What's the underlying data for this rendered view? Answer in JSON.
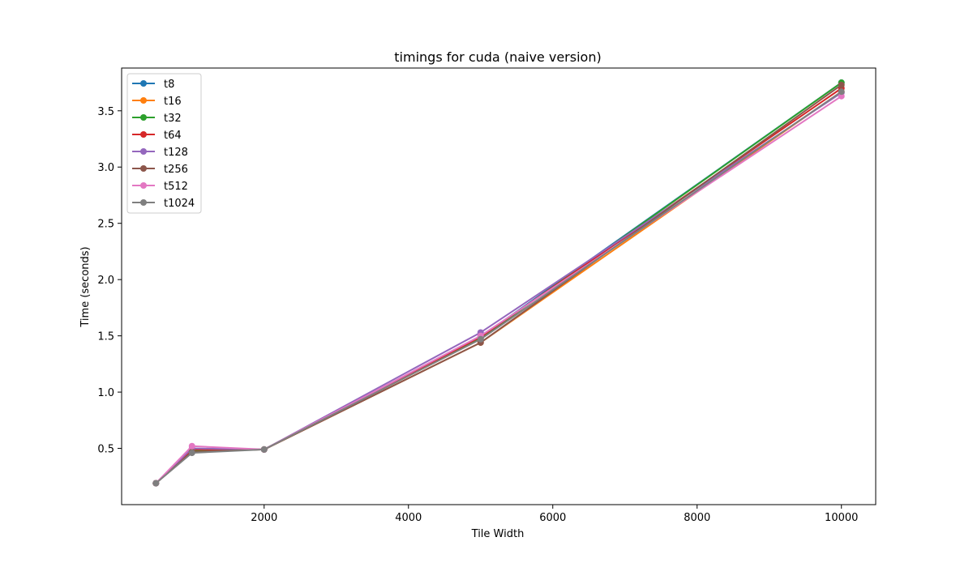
{
  "chart_data": {
    "type": "line",
    "title": "timings for cuda (naive version)",
    "xlabel": "Tile Width",
    "ylabel": "Time (seconds)",
    "x": [
      500,
      1000,
      2000,
      5000,
      10000
    ],
    "xlim": [
      25,
      10475
    ],
    "ylim": [
      0.0,
      3.88
    ],
    "xticks": [
      2000,
      4000,
      6000,
      8000,
      10000
    ],
    "xtick_labels": [
      "2000",
      "4000",
      "6000",
      "8000",
      "10000"
    ],
    "yticks": [
      0.5,
      1.0,
      1.5,
      2.0,
      2.5,
      3.0,
      3.5
    ],
    "ytick_labels": [
      "0.5",
      "1.0",
      "1.5",
      "2.0",
      "2.5",
      "3.0",
      "3.5"
    ],
    "grid": false,
    "legend_position": "upper-left",
    "series": [
      {
        "name": "t8",
        "color": "#1f77b4",
        "values": [
          0.19,
          0.48,
          0.49,
          1.49,
          3.75
        ]
      },
      {
        "name": "t16",
        "color": "#ff7f0e",
        "values": [
          0.19,
          0.48,
          0.49,
          1.44,
          3.67
        ]
      },
      {
        "name": "t32",
        "color": "#2ca02c",
        "values": [
          0.19,
          0.48,
          0.49,
          1.48,
          3.75
        ]
      },
      {
        "name": "t64",
        "color": "#d62728",
        "values": [
          0.19,
          0.49,
          0.49,
          1.49,
          3.7
        ]
      },
      {
        "name": "t128",
        "color": "#9467bd",
        "values": [
          0.19,
          0.5,
          0.49,
          1.53,
          3.66
        ]
      },
      {
        "name": "t256",
        "color": "#8c564b",
        "values": [
          0.19,
          0.47,
          0.49,
          1.44,
          3.73
        ]
      },
      {
        "name": "t512",
        "color": "#e377c2",
        "values": [
          0.19,
          0.52,
          0.49,
          1.5,
          3.63
        ]
      },
      {
        "name": "t1024",
        "color": "#7f7f7f",
        "values": [
          0.19,
          0.46,
          0.49,
          1.47,
          3.67
        ]
      }
    ]
  }
}
